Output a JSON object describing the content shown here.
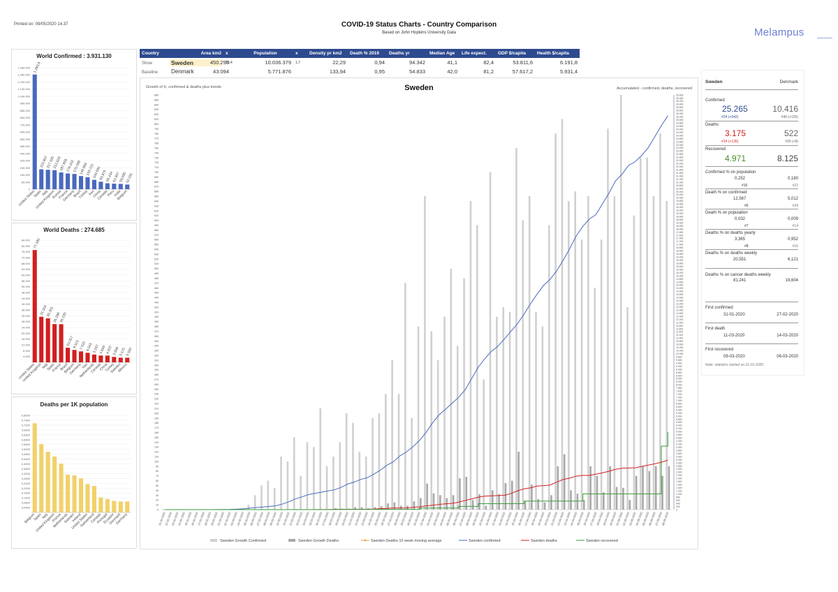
{
  "header": {
    "printed": "Printed on: 09/05/2020 14.37",
    "title": "COVID-19 Status Charts - Country Comparison",
    "subtitle": "Based on John Hopkins University Data",
    "logo": "Melampus"
  },
  "colors": {
    "blue": "#4a69bd",
    "red": "#d21f1f",
    "yellow": "#f2d169",
    "green": "#3a9e3a",
    "orange": "#e8a33a",
    "header_blue": "#2e4a8f",
    "gray_bar": "#d0d0d0",
    "dark_gray_bar": "#a8a8a8"
  },
  "table": {
    "headers": [
      "Country",
      "Area km2",
      "x",
      "Population",
      "x",
      "Density pr km2",
      "Death % 2019",
      "Deaths yr",
      "Median Age",
      "Life expect.",
      "GDP $/capita",
      "Health $/capita"
    ],
    "show": {
      "label": "Show",
      "country": "Sweden",
      "area": "450.295",
      "x1": "10,4",
      "population": "10.036.379",
      "x2": "1,7",
      "density": "22,29",
      "death_pct": "0,94",
      "deaths_yr": "94.342",
      "median_age": "41,1",
      "life": "82,4",
      "gdp": "53.811,6",
      "health": "6.191,8"
    },
    "baseline": {
      "label": "Baseline",
      "country": "Denmark",
      "area": "43.094",
      "population": "5.771.876",
      "density": "133,94",
      "death_pct": "0,95",
      "deaths_yr": "54.833",
      "median_age": "42,0",
      "life": "81,2",
      "gdp": "57.617,2",
      "health": "5.931,4"
    }
  },
  "stats": {
    "country_a": "Sweden",
    "country_b": "Denmark",
    "confirmed": {
      "label": "Confirmed",
      "a": "25.265",
      "a_sub": "#24  (+642)",
      "b": "10.416",
      "b_sub": "#40  (+135)"
    },
    "deaths": {
      "label": "Deaths",
      "a": "3.175",
      "a_sub": "#14  (+135)",
      "b": "522",
      "b_sub": "#30  (+8)"
    },
    "recovered": {
      "label": "Recovered",
      "a": "4.971",
      "b": "8.125"
    },
    "conf_pop": {
      "label": "Confirmed % on population",
      "a": "0,252",
      "a_rank": "#16",
      "b": "0,180",
      "b_rank": "#22"
    },
    "death_conf": {
      "label": "Death % on confirmed",
      "a": "12,567",
      "a_rank": "#6",
      "b": "5,012",
      "b_rank": "#39"
    },
    "death_pop": {
      "label": "Death % on population",
      "a": "0,032",
      "a_rank": "#7",
      "b": "0,009",
      "b_rank": "#14"
    },
    "death_yearly": {
      "label": "Deaths % on deaths yearly",
      "a": "3,365",
      "a_rank": "#8",
      "b": "0,952",
      "b_rank": "#16"
    },
    "death_weekly": {
      "label": "Deaths % on deaths weekly",
      "a": "20,551",
      "b": "6,121"
    },
    "death_cancer": {
      "label": "Deaths % on cancer deaths weekly",
      "a": "81,241",
      "b": "19,604"
    },
    "first_confirmed": {
      "label": "First confirmed",
      "a": "31-01-2020",
      "b": "27-02-2020"
    },
    "first_death": {
      "label": "First death",
      "a": "11-03-2020",
      "b": "14-03-2020"
    },
    "first_recovered": {
      "label": "First recovered",
      "a": "09-03-2020",
      "b": "06-03-2020"
    },
    "note": "Note: statistics started on 21-01-2020"
  },
  "chart_data": [
    {
      "type": "bar",
      "title": "World Confirmed :  3.931.130",
      "categories": [
        "United States",
        "Spain",
        "Italy",
        "United Kingdom",
        "Russia",
        "France",
        "Germany",
        "Brazil",
        "Turkey",
        "Iran",
        "China",
        "Canada",
        "Peru",
        "India",
        "Belgium"
      ],
      "values": [
        1283929,
        222857,
        217185,
        212629,
        187859,
        176202,
        170588,
        146894,
        133721,
        104691,
        83976,
        66434,
        61847,
        59695,
        52011
      ],
      "labels": [
        "1.283.929",
        "222.857",
        "217.185",
        "212.629",
        "187.859",
        "176.202",
        "170.588",
        "146.894",
        "133.721",
        "104.691",
        "83.976",
        "66.434",
        "61.847",
        "59.695",
        "52.011"
      ],
      "yticks": [
        "1.360.000",
        "1.280.000",
        "1.200.000",
        "1.120.000",
        "1.040.000",
        "960.000",
        "880.000",
        "800.000",
        "720.000",
        "640.000",
        "560.000",
        "480.000",
        "400.000",
        "320.000",
        "240.000",
        "160.000",
        "80.000",
        "0"
      ],
      "ylim": [
        0,
        1360000
      ]
    },
    {
      "type": "bar",
      "title": "World Deaths :  274.685",
      "categories": [
        "United States",
        "United Kingdom",
        "Italy",
        "Spain",
        "France",
        "Brazil",
        "Belgium",
        "Germany",
        "Iran",
        "Netherlands",
        "Canada",
        "China",
        "Turkey",
        "Sweden",
        "Mexico"
      ],
      "values": [
        77180,
        31316,
        30201,
        26299,
        26233,
        10017,
        8521,
        7510,
        6541,
        5337,
        4693,
        4637,
        3689,
        3175,
        3160
      ],
      "labels": [
        "77.180",
        "31.316",
        "30.201",
        "26.299",
        "26.233",
        "10.017",
        "8.521",
        "7.510",
        "6.541",
        "5.337",
        "4.693",
        "4.637",
        "3.689",
        "3.175",
        "3.160"
      ],
      "yticks": [
        "84.000",
        "80.000",
        "76.000",
        "72.000",
        "68.000",
        "64.000",
        "60.000",
        "56.000",
        "52.000",
        "48.000",
        "44.000",
        "40.000",
        "36.000",
        "32.000",
        "28.000",
        "24.000",
        "20.000",
        "16.000",
        "12.000",
        "8.000",
        "4.000"
      ],
      "ylim": [
        0,
        84000
      ]
    },
    {
      "type": "bar",
      "title": "Deaths per 1K population",
      "categories": [
        "Belgium",
        "Spain",
        "Italy",
        "United Kingdom",
        "France",
        "Netherlands",
        "Sweden",
        "Ireland",
        "United States",
        "Switzerland",
        "Canada",
        "Portugal",
        "Ecuador",
        "Denmark",
        "Germany"
      ],
      "values": [
        0.735,
        0.563,
        0.5,
        0.461,
        0.402,
        0.311,
        0.305,
        0.28,
        0.233,
        0.218,
        0.124,
        0.111,
        0.095,
        0.09,
        0.09
      ],
      "yticks": [
        "0,8000",
        "0,7600",
        "0,7200",
        "0,6800",
        "0,6400",
        "0,6000",
        "0,5600",
        "0,5200",
        "0,4800",
        "0,4400",
        "0,4000",
        "0,3600",
        "0,3200",
        "0,2800",
        "0,2400",
        "0,2000",
        "0,1600",
        "0,1200",
        "0,0800",
        "0,0400"
      ],
      "ylim": [
        0,
        0.8
      ]
    },
    {
      "type": "line",
      "title": "Sweden",
      "left_note": "Growth of X, confirmed & deaths  plus trends",
      "right_note": "Accumulated - confirmed, deaths, recovered",
      "x": [
        "21-02-2020",
        "22-02-2020",
        "23-02-2020",
        "24-02-2020",
        "25-02-2020",
        "26-02-2020",
        "27-02-2020",
        "28-02-2020",
        "29-02-2020",
        "01-03-2020",
        "02-03-2020",
        "03-03-2020",
        "04-03-2020",
        "05-03-2020",
        "06-03-2020",
        "07-03-2020",
        "08-03-2020",
        "09-03-2020",
        "10-03-2020",
        "11-03-2020",
        "12-03-2020",
        "13-03-2020",
        "14-03-2020",
        "15-03-2020",
        "16-03-2020",
        "17-03-2020",
        "18-03-2020",
        "19-03-2020",
        "20-03-2020",
        "21-03-2020",
        "22-03-2020",
        "23-03-2020",
        "24-03-2020",
        "25-03-2020",
        "26-03-2020",
        "27-03-2020",
        "28-03-2020",
        "29-03-2020",
        "30-03-2020",
        "31-03-2020",
        "01-04-2020",
        "02-04-2020",
        "03-04-2020",
        "04-04-2020",
        "05-04-2020",
        "06-04-2020",
        "07-04-2020",
        "08-04-2020",
        "09-04-2020",
        "10-04-2020",
        "11-04-2020",
        "12-04-2020",
        "13-04-2020",
        "14-04-2020",
        "15-04-2020",
        "16-04-2020",
        "17-04-2020",
        "18-04-2020",
        "19-04-2020",
        "20-04-2020",
        "21-04-2020",
        "22-04-2020",
        "23-04-2020",
        "24-04-2020",
        "25-04-2020",
        "26-04-2020",
        "27-04-2020",
        "28-04-2020",
        "29-04-2020",
        "30-04-2020",
        "01-05-2020",
        "02-05-2020",
        "03-05-2020",
        "04-05-2020",
        "05-05-2020",
        "06-05-2020",
        "07-05-2020",
        "08-05-2020"
      ],
      "left_axis": {
        "min": 0,
        "max": 860,
        "step": 10
      },
      "right_axis": {
        "min": 0,
        "max": 26600,
        "step": 200
      },
      "series": [
        {
          "name": "Sweden Growth Confirmed",
          "axis": "left",
          "kind": "bar",
          "values": [
            0,
            0,
            0,
            0,
            0,
            0,
            1,
            0,
            0,
            0,
            0,
            1,
            2,
            10,
            30,
            50,
            60,
            45,
            110,
            100,
            150,
            70,
            140,
            130,
            210,
            90,
            110,
            140,
            200,
            180,
            120,
            110,
            190,
            200,
            240,
            310,
            240,
            470,
            190,
            380,
            650,
            370,
            310,
            400,
            500,
            340,
            480,
            640,
            590,
            270,
            700,
            400,
            420,
            410,
            750,
            600,
            650,
            410,
            380,
            590,
            780,
            810,
            640,
            660,
            560,
            650,
            460,
            560,
            790,
            650,
            860,
            420,
            610,
            730,
            730,
            650,
            780,
            640
          ]
        },
        {
          "name": "Sweden Growth Deaths",
          "axis": "left",
          "kind": "bar",
          "values": [
            0,
            0,
            0,
            0,
            0,
            0,
            0,
            0,
            0,
            0,
            0,
            0,
            0,
            0,
            0,
            0,
            0,
            0,
            0,
            0,
            1,
            0,
            0,
            0,
            0,
            1,
            3,
            2,
            2,
            5,
            5,
            3,
            5,
            7,
            13,
            15,
            8,
            8,
            17,
            24,
            54,
            34,
            30,
            24,
            30,
            65,
            68,
            20,
            32,
            8,
            40,
            32,
            55,
            60,
            120,
            17,
            52,
            22,
            15,
            30,
            90,
            115,
            40,
            33,
            20,
            90,
            70,
            36,
            90,
            47,
            45,
            20,
            70,
            90,
            80,
            90,
            70,
            90
          ]
        },
        {
          "name": "Sweden Deaths 10 week moving average",
          "axis": "left",
          "kind": "line",
          "values": [
            null,
            null,
            null,
            null,
            null,
            null,
            null,
            null,
            null,
            null,
            null,
            null,
            null,
            null,
            null,
            null,
            null,
            null,
            null,
            null,
            null,
            null,
            null,
            null,
            null,
            null,
            null,
            null,
            null,
            null,
            null,
            null,
            null,
            null,
            null,
            null,
            null,
            null,
            null,
            null,
            null,
            null,
            null,
            null,
            null,
            null,
            null,
            null,
            null,
            null,
            null,
            null,
            null,
            null,
            null,
            null,
            null,
            null,
            null,
            null,
            null,
            null,
            null,
            null,
            null,
            null,
            null,
            null,
            null,
            null,
            null,
            null,
            null,
            null,
            null,
            null,
            null,
            null
          ]
        },
        {
          "name": "Sweden confirmed",
          "axis": "right",
          "kind": "line",
          "values": [
            0,
            0,
            0,
            0,
            0,
            0,
            1,
            2,
            7,
            13,
            15,
            30,
            50,
            94,
            137,
            161,
            203,
            248,
            355,
            500,
            687,
            814,
            961,
            1040,
            1121,
            1196,
            1279,
            1423,
            1639,
            1763,
            1934,
            2046,
            2272,
            2526,
            2840,
            3069,
            3447,
            3700,
            4028,
            4435,
            4947,
            5568,
            6078,
            6443,
            6830,
            7206,
            7693,
            8419,
            9141,
            9685,
            10151,
            10483,
            10948,
            11445,
            11927,
            12540,
            13216,
            13822,
            14385,
            14777,
            15322,
            16004,
            16755,
            17567,
            18177,
            18640,
            18926,
            19621,
            20302,
            21092,
            21520,
            22082,
            22317,
            22721,
            23216,
            23918,
            24623,
            25265
          ]
        },
        {
          "name": "Sweden deaths",
          "axis": "right",
          "kind": "line",
          "values": [
            0,
            0,
            0,
            0,
            0,
            0,
            0,
            0,
            0,
            0,
            0,
            0,
            0,
            0,
            0,
            0,
            0,
            0,
            0,
            1,
            1,
            1,
            2,
            3,
            6,
            7,
            10,
            11,
            16,
            20,
            21,
            25,
            36,
            62,
            77,
            105,
            105,
            110,
            146,
            180,
            239,
            282,
            333,
            373,
            401,
            477,
            591,
            687,
            793,
            870,
            887,
            899,
            919,
            1033,
            1203,
            1333,
            1400,
            1511,
            1540,
            1580,
            1765,
            1937,
            2021,
            2152,
            2192,
            2194,
            2274,
            2355,
            2462,
            2586,
            2653,
            2669,
            2679,
            2769,
            2854,
            2941,
            3040,
            3175
          ]
        },
        {
          "name": "Sweden recovered",
          "axis": "right",
          "kind": "line",
          "values": [
            0,
            0,
            0,
            0,
            0,
            0,
            0,
            0,
            0,
            0,
            0,
            0,
            0,
            0,
            0,
            0,
            0,
            0,
            1,
            1,
            1,
            1,
            1,
            1,
            1,
            1,
            16,
            16,
            16,
            16,
            16,
            16,
            16,
            16,
            16,
            16,
            16,
            16,
            16,
            103,
            103,
            103,
            103,
            103,
            103,
            205,
            205,
            205,
            381,
            381,
            381,
            381,
            381,
            381,
            381,
            550,
            550,
            550,
            550,
            550,
            550,
            550,
            550,
            550,
            1005,
            1005,
            1005,
            1005,
            1005,
            1005,
            1005,
            1005,
            1005,
            1005,
            1005,
            1005,
            4074,
            4971
          ]
        }
      ]
    }
  ]
}
